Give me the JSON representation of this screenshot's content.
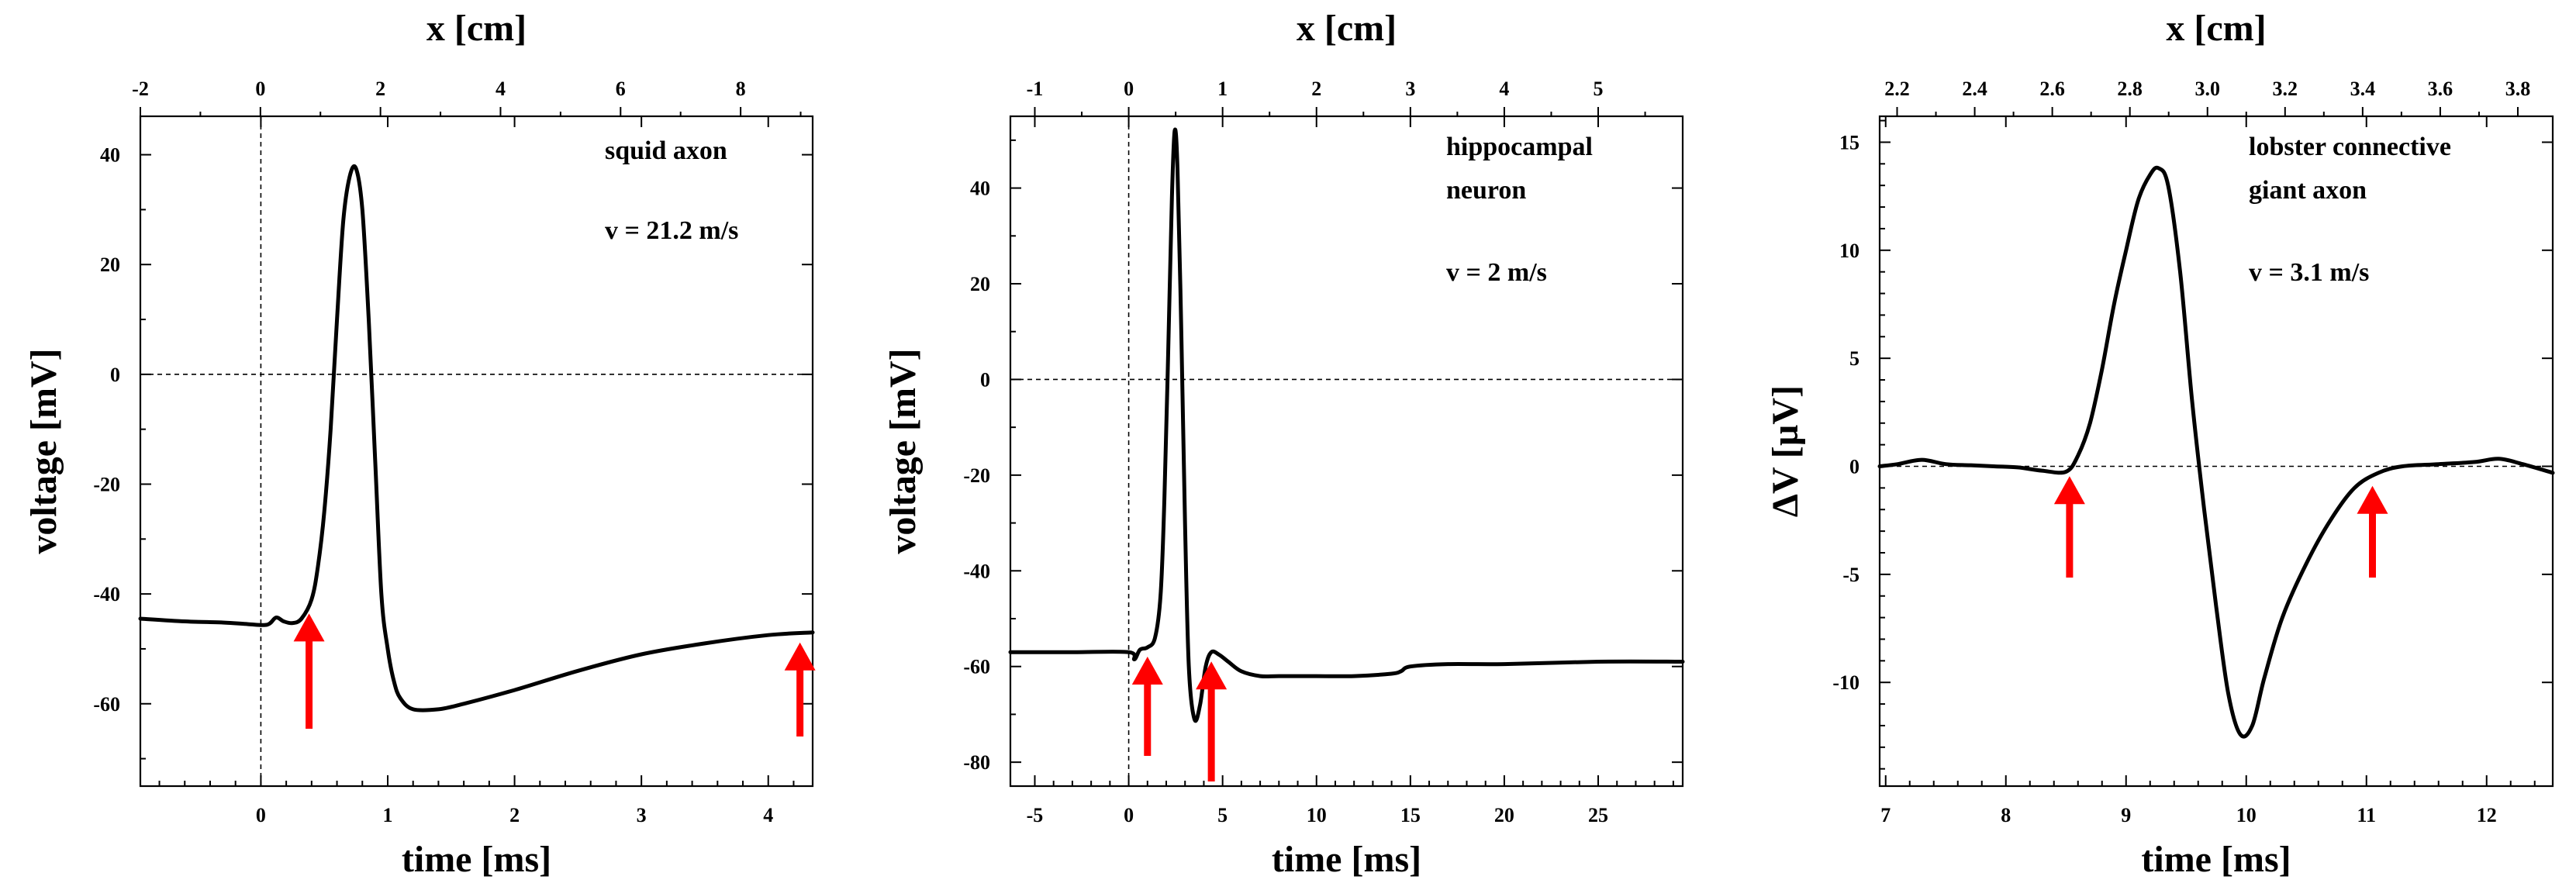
{
  "chart_data": [
    {
      "type": "line",
      "id": "panel1",
      "annotation": "squid axon",
      "velocity_text": "v = 21.2 m/s",
      "xlabel": "time [ms]",
      "ylabel": "voltage [mV]",
      "x2label": "x [cm]",
      "xlim": [
        -0.95,
        4.35
      ],
      "ylim": [
        -75,
        47
      ],
      "x2lim": [
        -2.0,
        9.2
      ],
      "xticks": [
        0,
        1,
        2,
        3,
        4
      ],
      "xtick_labels": [
        "0",
        "1",
        "2",
        "3",
        "4"
      ],
      "xminor": [
        -0.8,
        -0.6,
        -0.4,
        -0.2,
        0.2,
        0.4,
        0.6,
        0.8,
        1.2,
        1.4,
        1.6,
        1.8,
        2.2,
        2.4,
        2.6,
        2.8,
        3.2,
        3.4,
        3.6,
        3.8,
        4.2
      ],
      "yticks": [
        -60,
        -40,
        -20,
        0,
        20,
        40
      ],
      "ytick_labels": [
        "-60",
        "-40",
        "-20",
        "0",
        "20",
        "40"
      ],
      "yminor": [
        -70,
        -50,
        -30,
        -10,
        10,
        30
      ],
      "x2ticks": [
        -2,
        0,
        2,
        4,
        6,
        8
      ],
      "x2tick_labels": [
        "-2",
        "0",
        "2",
        "4",
        "6",
        "8"
      ],
      "x2minor": [
        -1,
        1,
        3,
        5,
        7,
        9
      ],
      "hline": 0,
      "vline": 0,
      "series": [
        {
          "name": "squid axon",
          "x": [
            -0.95,
            -0.6,
            -0.3,
            -0.1,
            0.05,
            0.12,
            0.18,
            0.25,
            0.32,
            0.4,
            0.45,
            0.5,
            0.55,
            0.6,
            0.65,
            0.7,
            0.75,
            0.8,
            0.85,
            0.9,
            0.95,
            1.0,
            1.05,
            1.1,
            1.2,
            1.4,
            1.6,
            2.0,
            2.5,
            3.0,
            3.5,
            4.0,
            4.35
          ],
          "y": [
            -44.5,
            -45,
            -45.2,
            -45.5,
            -45.6,
            -44.3,
            -45,
            -45.3,
            -44.5,
            -41,
            -35,
            -25,
            -10,
            10,
            28,
            36,
            37.5,
            30,
            10,
            -15,
            -40,
            -50,
            -56,
            -59,
            -61,
            -61,
            -60,
            -57.5,
            -54,
            -51,
            -49,
            -47.5,
            -47
          ]
        }
      ],
      "arrows": [
        0.38,
        4.25
      ]
    },
    {
      "type": "line",
      "id": "panel2",
      "annotation_lines": [
        "hippocampal",
        "neuron"
      ],
      "velocity_text": "v = 2 m/s",
      "xlabel": "time [ms]",
      "ylabel": "voltage [mV]",
      "x2label": "x [cm]",
      "xlim": [
        -6.3,
        29.5
      ],
      "ylim": [
        -85,
        55
      ],
      "x2lim": [
        -1.26,
        5.9
      ],
      "xticks": [
        -5,
        0,
        5,
        10,
        15,
        20,
        25
      ],
      "xtick_labels": [
        "-5",
        "0",
        "5",
        "10",
        "15",
        "20",
        "25"
      ],
      "xminor": [
        -4,
        -3,
        -2,
        -1,
        1,
        2,
        3,
        4,
        6,
        7,
        8,
        9,
        11,
        12,
        13,
        14,
        16,
        17,
        18,
        19,
        21,
        22,
        23,
        24,
        26,
        27,
        28,
        29
      ],
      "yticks": [
        -80,
        -60,
        -40,
        -20,
        0,
        20,
        40
      ],
      "ytick_labels": [
        "-80",
        "-60",
        "-40",
        "-20",
        "0",
        "20",
        "40"
      ],
      "yminor": [
        -70,
        -50,
        -30,
        -10,
        10,
        30,
        50
      ],
      "x2ticks": [
        -1,
        0,
        1,
        2,
        3,
        4,
        5
      ],
      "x2tick_labels": [
        "-1",
        "0",
        "1",
        "2",
        "3",
        "4",
        "5"
      ],
      "x2minor": [
        -0.5,
        0.5,
        1.5,
        2.5,
        3.5,
        4.5,
        5.5
      ],
      "hline": 0,
      "vline": 0,
      "series": [
        {
          "name": "hippocampal neuron",
          "x": [
            -6.3,
            -3,
            0,
            0.3,
            0.6,
            1.0,
            1.4,
            1.7,
            1.9,
            2.1,
            2.3,
            2.45,
            2.6,
            2.8,
            3.0,
            3.2,
            3.5,
            3.8,
            4.1,
            4.4,
            4.8,
            5.3,
            6,
            7,
            8,
            10,
            12,
            14,
            14.5,
            15,
            17,
            20,
            25,
            29.5
          ],
          "y": [
            -57,
            -57,
            -57,
            -58.5,
            -56.5,
            -56,
            -54,
            -45,
            -25,
            5,
            38,
            52,
            44,
            10,
            -30,
            -60,
            -71,
            -68,
            -60,
            -57,
            -57.5,
            -59,
            -61,
            -62,
            -62,
            -62,
            -62,
            -61.5,
            -61,
            -60,
            -59.5,
            -59.5,
            -59,
            -59
          ]
        }
      ],
      "arrows": [
        1.0,
        4.4
      ]
    },
    {
      "type": "line",
      "id": "panel3",
      "annotation_lines": [
        "lobster connective",
        "giant axon"
      ],
      "velocity_text": "v = 3.1 m/s",
      "xlabel": "time [ms]",
      "ylabel": "ΔV [µV]",
      "x2label": "x [cm]",
      "xlim": [
        6.95,
        12.55
      ],
      "ylim": [
        -14.8,
        16.2
      ],
      "x2lim": [
        2.155,
        3.89
      ],
      "xticks": [
        7,
        8,
        9,
        10,
        11,
        12
      ],
      "xtick_labels": [
        "7",
        "8",
        "9",
        "10",
        "11",
        "12"
      ],
      "xminor": [
        7.2,
        7.4,
        7.6,
        7.8,
        8.2,
        8.4,
        8.6,
        8.8,
        9.2,
        9.4,
        9.6,
        9.8,
        10.2,
        10.4,
        10.6,
        10.8,
        11.2,
        11.4,
        11.6,
        11.8,
        12.2,
        12.4
      ],
      "yticks": [
        -10,
        -5,
        0,
        5,
        10,
        15
      ],
      "ytick_labels": [
        "-10",
        "-5",
        "0",
        "5",
        "10",
        "15"
      ],
      "yminor": [
        -14,
        -13,
        -12,
        -11,
        -9,
        -8,
        -7,
        -6,
        -4,
        -3,
        -2,
        -1,
        1,
        2,
        3,
        4,
        6,
        7,
        8,
        9,
        11,
        12,
        13,
        14,
        16
      ],
      "x2ticks": [
        2.2,
        2.4,
        2.6,
        2.8,
        3.0,
        3.2,
        3.4,
        3.6,
        3.8
      ],
      "x2tick_labels": [
        "2.2",
        "2.4",
        "2.6",
        "2.8",
        "3.0",
        "3.2",
        "3.4",
        "3.6",
        "3.8"
      ],
      "x2minor": [
        2.3,
        2.5,
        2.7,
        2.9,
        3.1,
        3.3,
        3.5,
        3.7
      ],
      "hline": 0,
      "vline": null,
      "series": [
        {
          "name": "lobster connective giant axon",
          "x": [
            6.95,
            7.1,
            7.3,
            7.5,
            7.7,
            7.9,
            8.1,
            8.3,
            8.5,
            8.6,
            8.7,
            8.8,
            8.9,
            9.0,
            9.1,
            9.2,
            9.27,
            9.35,
            9.45,
            9.55,
            9.65,
            9.75,
            9.85,
            9.95,
            10.05,
            10.15,
            10.3,
            10.5,
            10.7,
            10.9,
            11.1,
            11.3,
            11.6,
            11.9,
            12.1,
            12.3,
            12.55
          ],
          "y": [
            0,
            0.1,
            0.3,
            0.1,
            0.05,
            0,
            -0.05,
            -0.2,
            -0.25,
            0.5,
            2,
            4.5,
            7.5,
            10,
            12.3,
            13.5,
            13.8,
            13,
            9,
            3,
            -2,
            -6.5,
            -10.5,
            -12.4,
            -12,
            -9.8,
            -7,
            -4.5,
            -2.5,
            -1,
            -0.3,
            0,
            0.1,
            0.2,
            0.35,
            0.1,
            -0.3
          ]
        }
      ],
      "arrows": [
        8.53,
        11.05
      ]
    }
  ]
}
